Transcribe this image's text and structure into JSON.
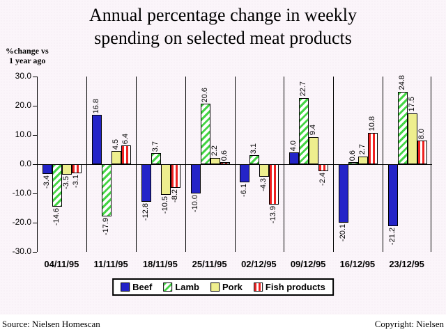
{
  "title": {
    "line1": "Annual percentage change in weekly",
    "line2": "spending on selected meat products"
  },
  "y_axis_label": {
    "line1": "%change vs",
    "line2": "1 year ago"
  },
  "footer": {
    "source": "Source: Nielsen Homescan",
    "copyright": "Copyright: Nielsen"
  },
  "chart_data": {
    "type": "bar",
    "title": "Annual percentage change in weekly spending on selected meat products",
    "ylabel": "%change vs 1 year ago",
    "xlabel": "",
    "categories": [
      "04/11/95",
      "11/11/95",
      "18/11/95",
      "25/11/95",
      "02/12/95",
      "09/12/95",
      "16/12/95",
      "23/12/95"
    ],
    "series": [
      {
        "name": "Beef",
        "color": "#2424c8",
        "pattern": "solid",
        "values": [
          -3.4,
          16.8,
          -12.8,
          -10.0,
          -6.1,
          4.0,
          -20.1,
          -21.2
        ]
      },
      {
        "name": "Lamb",
        "color": "#44d544",
        "pattern": "diagonal",
        "values": [
          -14.6,
          -17.9,
          3.7,
          20.6,
          3.1,
          22.7,
          0.6,
          24.8
        ]
      },
      {
        "name": "Pork",
        "color": "#eeee8e",
        "pattern": "solid",
        "values": [
          -3.5,
          4.5,
          -10.5,
          2.2,
          -4.3,
          9.4,
          2.7,
          17.5
        ]
      },
      {
        "name": "Fish products",
        "color": "#ee2020",
        "pattern": "vertical",
        "values": [
          -3.1,
          6.4,
          -8.2,
          0.6,
          -13.9,
          -2.4,
          10.8,
          8.0
        ]
      }
    ],
    "ylim": [
      -30,
      30
    ],
    "ytick_step": 10,
    "ytick_labels": [
      "30.0",
      "20.0",
      "10.0",
      "0.0",
      "-10.0",
      "-20.0",
      "-30.0"
    ],
    "value_label_decimals": 1,
    "grid": "vertical-group-separators",
    "legend_position": "bottom"
  }
}
